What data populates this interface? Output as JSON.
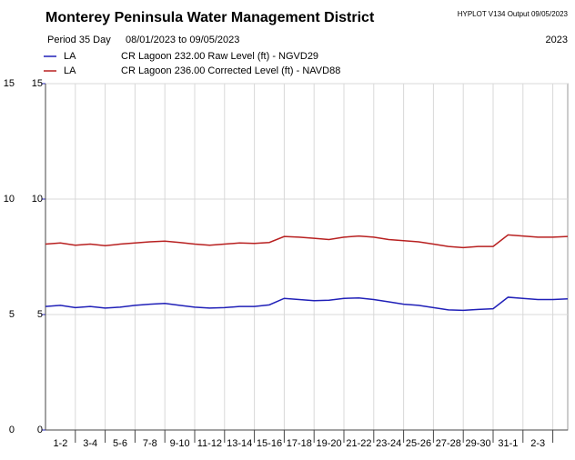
{
  "chart_data": {
    "type": "line",
    "title": "Monterey Peninsula Water Management District",
    "program": "HYPLOT V134  Output 09/05/2023",
    "period": "Period  35 Day",
    "date_range": "08/01/2023  to  09/05/2023",
    "year": "2023",
    "x": [
      0,
      1,
      2,
      3,
      4,
      5,
      6,
      7,
      8,
      9,
      10,
      11,
      12,
      13,
      14,
      15,
      16,
      17,
      18,
      19,
      20,
      21,
      22,
      23,
      24,
      25,
      26,
      27,
      28,
      29,
      30,
      31,
      32,
      33,
      34,
      35
    ],
    "xlim": [
      0,
      35
    ],
    "xticks": [
      {
        "value": 1,
        "label": "1-2"
      },
      {
        "value": 3,
        "label": "3-4"
      },
      {
        "value": 5,
        "label": "5-6"
      },
      {
        "value": 7,
        "label": "7-8"
      },
      {
        "value": 9,
        "label": "9-10"
      },
      {
        "value": 11,
        "label": "11-12"
      },
      {
        "value": 13,
        "label": "13-14"
      },
      {
        "value": 15,
        "label": "15-16"
      },
      {
        "value": 17,
        "label": "17-18"
      },
      {
        "value": 19,
        "label": "19-20"
      },
      {
        "value": 21,
        "label": "21-22"
      },
      {
        "value": 23,
        "label": "23-24"
      },
      {
        "value": 25,
        "label": "25-26"
      },
      {
        "value": 27,
        "label": "27-28"
      },
      {
        "value": 29,
        "label": "29-30"
      },
      {
        "value": 31,
        "label": "31-1"
      },
      {
        "value": 33,
        "label": "2-3"
      }
    ],
    "ylim": [
      0,
      15
    ],
    "yticks": [
      0,
      5,
      10,
      15
    ],
    "y2lim": [
      0,
      15
    ],
    "y2ticks": [
      0,
      5,
      10,
      15
    ],
    "grid": true,
    "series": [
      {
        "site": "LA",
        "name": "CR Lagoon  232.00 Raw Level (ft) - NGVD29",
        "color": "#2020b8",
        "values": [
          5.35,
          5.4,
          5.3,
          5.35,
          5.28,
          5.32,
          5.4,
          5.45,
          5.48,
          5.4,
          5.32,
          5.28,
          5.3,
          5.35,
          5.35,
          5.42,
          5.7,
          5.65,
          5.6,
          5.62,
          5.7,
          5.72,
          5.65,
          5.55,
          5.45,
          5.4,
          5.3,
          5.2,
          5.18,
          5.22,
          5.25,
          5.75,
          5.7,
          5.65,
          5.65,
          5.68
        ]
      },
      {
        "site": "LA",
        "name": "CR Lagoon  236.00 Corrected Level (ft) - NAVD88",
        "color": "#b82020",
        "axis": "y2",
        "values": [
          8.05,
          8.1,
          8.0,
          8.05,
          7.98,
          8.05,
          8.1,
          8.15,
          8.18,
          8.12,
          8.05,
          8.0,
          8.05,
          8.1,
          8.08,
          8.12,
          8.38,
          8.35,
          8.3,
          8.25,
          8.35,
          8.4,
          8.35,
          8.25,
          8.2,
          8.15,
          8.05,
          7.95,
          7.9,
          7.95,
          7.95,
          8.45,
          8.4,
          8.35,
          8.35,
          8.38
        ]
      }
    ]
  }
}
